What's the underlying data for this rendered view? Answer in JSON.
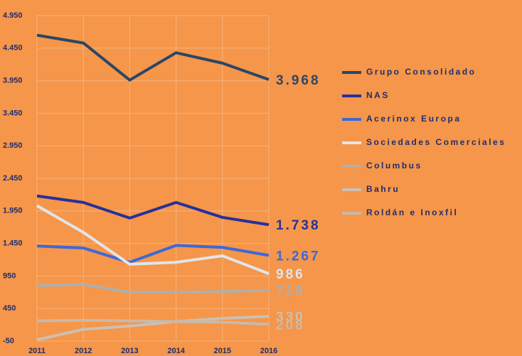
{
  "chart_data": {
    "type": "line",
    "categories": [
      "2011",
      "2012",
      "2013",
      "2014",
      "2015",
      "2016"
    ],
    "ylim": [
      -50,
      4950
    ],
    "yticks": [
      -50,
      450,
      950,
      {
        "value": 1450,
        "label": "1.450"
      },
      {
        "value": 1950,
        "label": "1.950"
      },
      {
        "value": 2450,
        "label": "2.450"
      },
      {
        "value": 2950,
        "label": "2.950"
      },
      {
        "value": 3450,
        "label": "3.450"
      },
      {
        "value": 3950,
        "label": "3.950"
      },
      {
        "value": 4450,
        "label": "4.450"
      },
      {
        "value": 4950,
        "label": "4.950"
      }
    ],
    "grid": true,
    "legend": "right",
    "series": [
      {
        "name": "Grupo Consolidado",
        "color": "#2b4666",
        "values": [
          4650,
          4530,
          3960,
          4380,
          4220,
          3968
        ],
        "value_labels": [
          null,
          null,
          null,
          null,
          null,
          "3.968"
        ]
      },
      {
        "name": "NAS",
        "color": "#27309a",
        "values": [
          2180,
          2080,
          1840,
          2080,
          1850,
          1738
        ],
        "value_labels": [
          null,
          null,
          null,
          null,
          null,
          "1.738"
        ]
      },
      {
        "name": "Acerinox Europa",
        "color": "#3d68d8",
        "values": [
          1410,
          1380,
          1160,
          1420,
          1390,
          1267
        ],
        "value_labels": [
          null,
          null,
          null,
          null,
          null,
          "1.267"
        ]
      },
      {
        "name": "Sociedades Comerciales",
        "color": "#dfe5ec",
        "values": [
          2030,
          1620,
          1130,
          1160,
          1260,
          986
        ],
        "value_labels": [
          null,
          null,
          null,
          null,
          null,
          "986"
        ]
      },
      {
        "name": "Columbus",
        "color": "#b0aeac",
        "values": [
          802,
          820,
          700,
          700,
          710,
          729
        ],
        "value_labels": [
          null,
          null,
          null,
          null,
          null,
          "729"
        ]
      },
      {
        "name": "Bahru",
        "color": "#cdbfb2",
        "values": [
          -30,
          130,
          180,
          250,
          300,
          330
        ],
        "value_labels": [
          null,
          null,
          null,
          null,
          null,
          "330"
        ]
      },
      {
        "name": "Roldán e Inoxfil",
        "color": "#c9b9a9",
        "values": [
          260,
          270,
          260,
          250,
          240,
          208
        ],
        "value_labels": [
          null,
          null,
          null,
          null,
          null,
          "208"
        ]
      }
    ]
  }
}
